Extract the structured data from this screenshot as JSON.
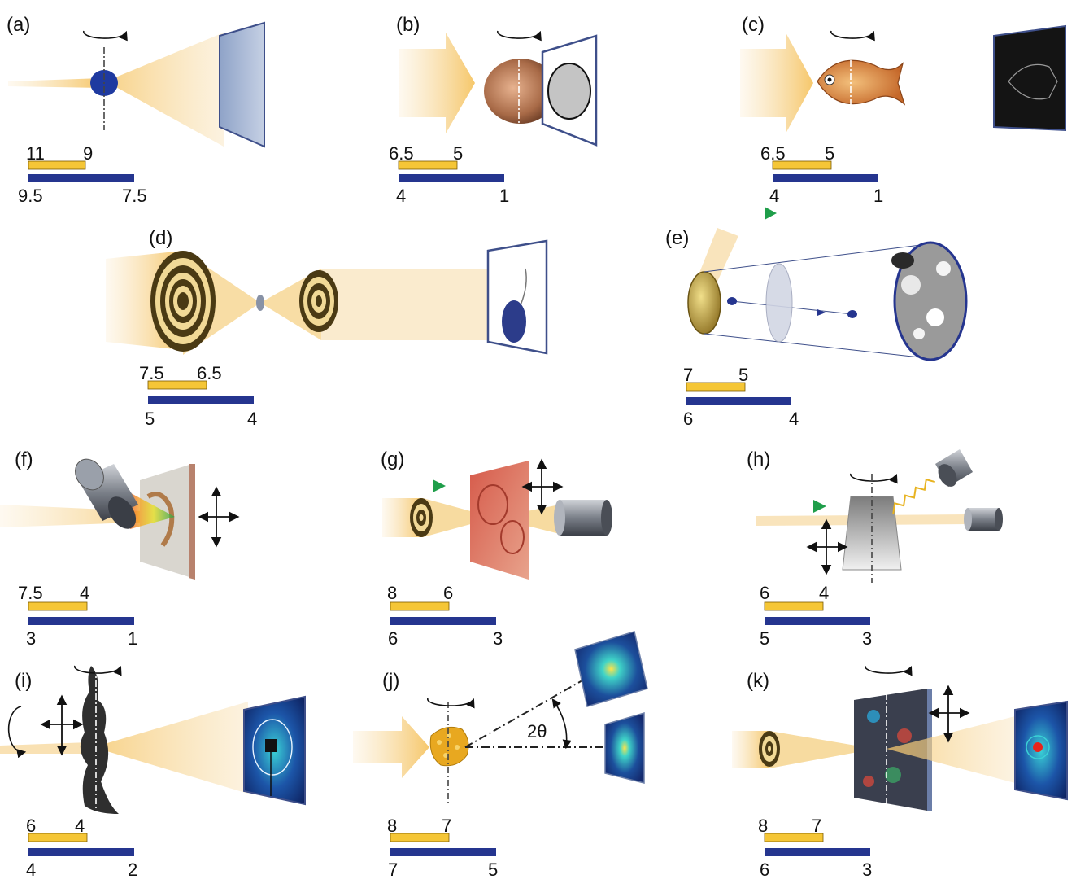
{
  "colors": {
    "yellow": "#f5c636",
    "blue": "#25358f",
    "beam": "#f7d9a0",
    "background": "#ffffff"
  },
  "panels": [
    {
      "id": "a",
      "label": "(a)",
      "scale_top": [
        "11",
        "9"
      ],
      "scale_bottom": [
        "9.5",
        "7.5"
      ]
    },
    {
      "id": "b",
      "label": "(b)",
      "scale_top": [
        "6.5",
        "5"
      ],
      "scale_bottom": [
        "4",
        "1"
      ]
    },
    {
      "id": "c",
      "label": "(c)",
      "scale_top": [
        "6.5",
        "5"
      ],
      "scale_bottom": [
        "4",
        "1"
      ]
    },
    {
      "id": "d",
      "label": "(d)",
      "scale_top": [
        "7.5",
        "6.5"
      ],
      "scale_bottom": [
        "5",
        "4"
      ]
    },
    {
      "id": "e",
      "label": "(e)",
      "scale_top": [
        "7",
        "5"
      ],
      "scale_bottom": [
        "6",
        "4"
      ]
    },
    {
      "id": "f",
      "label": "(f)",
      "scale_top": [
        "7.5",
        "4"
      ],
      "scale_bottom": [
        "3",
        "1"
      ]
    },
    {
      "id": "g",
      "label": "(g)",
      "scale_top": [
        "8",
        "6"
      ],
      "scale_bottom": [
        "6",
        "3"
      ]
    },
    {
      "id": "h",
      "label": "(h)",
      "scale_top": [
        "6",
        "4"
      ],
      "scale_bottom": [
        "5",
        "3"
      ]
    },
    {
      "id": "i",
      "label": "(i)",
      "scale_top": [
        "6",
        "4"
      ],
      "scale_bottom": [
        "4",
        "2"
      ]
    },
    {
      "id": "j",
      "label": "(j)",
      "scale_top": [
        "8",
        "7"
      ],
      "scale_bottom": [
        "7",
        "5"
      ],
      "angle_label": "2θ"
    },
    {
      "id": "k",
      "label": "(k)",
      "scale_top": [
        "8",
        "7"
      ],
      "scale_bottom": [
        "6",
        "3"
      ]
    }
  ]
}
